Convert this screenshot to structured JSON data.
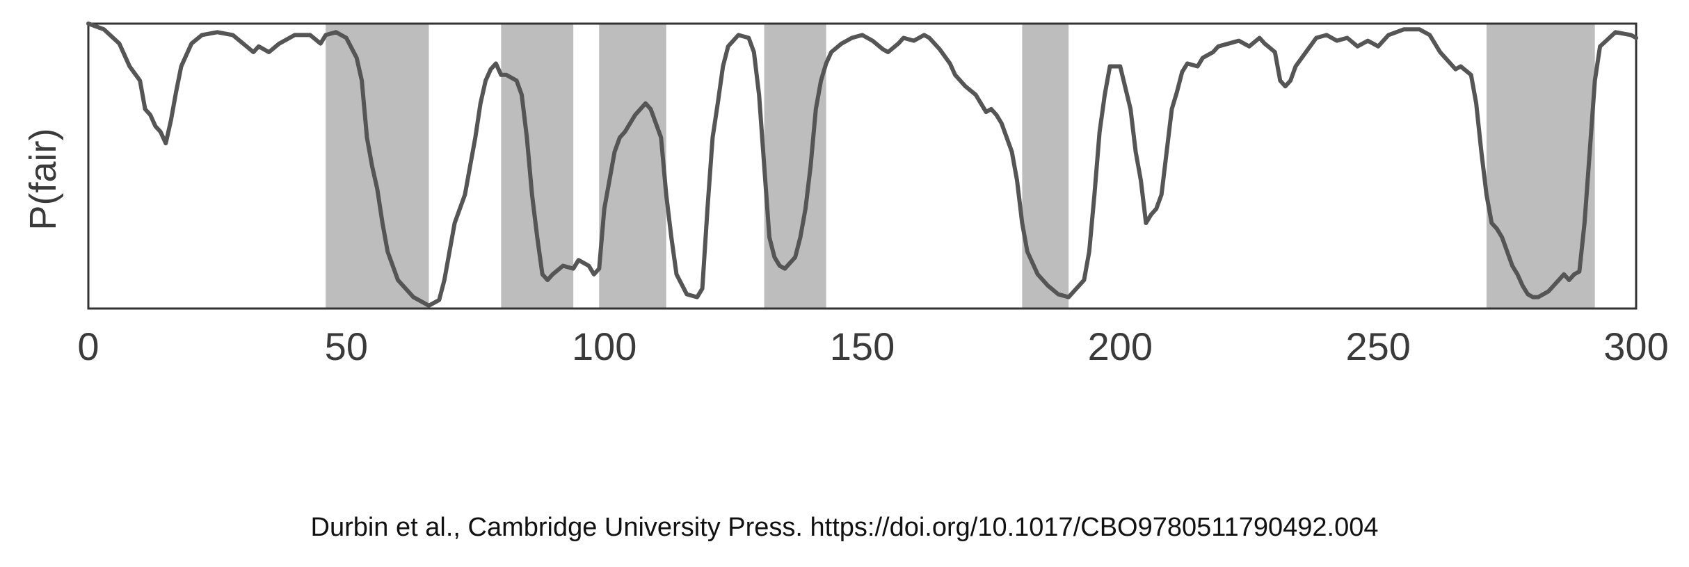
{
  "chart_data": {
    "type": "line",
    "title": "",
    "xlabel": "",
    "ylabel": "P(fair)",
    "xlim": [
      0,
      300
    ],
    "ylim": [
      0,
      1
    ],
    "xticks": [
      "0",
      "50",
      "100",
      "150",
      "200",
      "250",
      "300"
    ],
    "grid": false,
    "legend": "none",
    "colors": {
      "line": "#555555",
      "shade": "#bdbdbd",
      "frame": "#333333"
    },
    "shaded_regions": [
      [
        46,
        66
      ],
      [
        80,
        94
      ],
      [
        99,
        112
      ],
      [
        131,
        143
      ],
      [
        181,
        190
      ],
      [
        271,
        292
      ]
    ],
    "series": [
      {
        "values": [
          [
            0,
            1.0
          ],
          [
            3,
            0.98
          ],
          [
            6,
            0.93
          ],
          [
            8,
            0.85
          ],
          [
            10,
            0.8
          ],
          [
            11,
            0.7
          ],
          [
            12,
            0.68
          ],
          [
            13,
            0.64
          ],
          [
            14,
            0.62
          ],
          [
            15,
            0.58
          ],
          [
            16,
            0.66
          ],
          [
            17,
            0.76
          ],
          [
            18,
            0.85
          ],
          [
            20,
            0.93
          ],
          [
            22,
            0.96
          ],
          [
            25,
            0.97
          ],
          [
            28,
            0.96
          ],
          [
            30,
            0.93
          ],
          [
            32,
            0.9
          ],
          [
            33,
            0.92
          ],
          [
            35,
            0.9
          ],
          [
            37,
            0.93
          ],
          [
            40,
            0.96
          ],
          [
            43,
            0.96
          ],
          [
            45,
            0.93
          ],
          [
            46,
            0.96
          ],
          [
            48,
            0.97
          ],
          [
            50,
            0.95
          ],
          [
            52,
            0.88
          ],
          [
            53,
            0.8
          ],
          [
            54,
            0.6
          ],
          [
            55,
            0.5
          ],
          [
            56,
            0.42
          ],
          [
            57,
            0.3
          ],
          [
            58,
            0.2
          ],
          [
            60,
            0.1
          ],
          [
            62,
            0.06
          ],
          [
            63,
            0.04
          ],
          [
            65,
            0.02
          ],
          [
            66,
            0.01
          ],
          [
            68,
            0.03
          ],
          [
            69,
            0.1
          ],
          [
            70,
            0.2
          ],
          [
            71,
            0.3
          ],
          [
            72,
            0.35
          ],
          [
            73,
            0.4
          ],
          [
            74,
            0.5
          ],
          [
            75,
            0.6
          ],
          [
            76,
            0.72
          ],
          [
            77,
            0.8
          ],
          [
            78,
            0.84
          ],
          [
            79,
            0.86
          ],
          [
            80,
            0.82
          ],
          [
            81,
            0.82
          ],
          [
            83,
            0.8
          ],
          [
            84,
            0.75
          ],
          [
            85,
            0.6
          ],
          [
            86,
            0.4
          ],
          [
            87,
            0.25
          ],
          [
            88,
            0.12
          ],
          [
            89,
            0.1
          ],
          [
            90,
            0.12
          ],
          [
            92,
            0.15
          ],
          [
            94,
            0.14
          ],
          [
            95,
            0.17
          ],
          [
            97,
            0.15
          ],
          [
            98,
            0.12
          ],
          [
            99,
            0.14
          ],
          [
            100,
            0.35
          ],
          [
            102,
            0.55
          ],
          [
            103,
            0.6
          ],
          [
            104,
            0.62
          ],
          [
            106,
            0.68
          ],
          [
            107,
            0.7
          ],
          [
            108,
            0.72
          ],
          [
            109,
            0.7
          ],
          [
            111,
            0.6
          ],
          [
            112,
            0.4
          ],
          [
            113,
            0.25
          ],
          [
            114,
            0.12
          ],
          [
            116,
            0.05
          ],
          [
            118,
            0.04
          ],
          [
            119,
            0.07
          ],
          [
            120,
            0.35
          ],
          [
            121,
            0.6
          ],
          [
            122,
            0.72
          ],
          [
            123,
            0.85
          ],
          [
            124,
            0.92
          ],
          [
            126,
            0.96
          ],
          [
            128,
            0.95
          ],
          [
            129,
            0.9
          ],
          [
            130,
            0.75
          ],
          [
            131,
            0.5
          ],
          [
            132,
            0.25
          ],
          [
            133,
            0.18
          ],
          [
            134,
            0.15
          ],
          [
            135,
            0.14
          ],
          [
            136,
            0.16
          ],
          [
            137,
            0.18
          ],
          [
            138,
            0.25
          ],
          [
            139,
            0.35
          ],
          [
            140,
            0.5
          ],
          [
            141,
            0.7
          ],
          [
            142,
            0.8
          ],
          [
            143,
            0.86
          ],
          [
            144,
            0.9
          ],
          [
            146,
            0.93
          ],
          [
            148,
            0.95
          ],
          [
            150,
            0.96
          ],
          [
            152,
            0.94
          ],
          [
            154,
            0.91
          ],
          [
            155,
            0.9
          ],
          [
            157,
            0.93
          ],
          [
            158,
            0.95
          ],
          [
            160,
            0.94
          ],
          [
            162,
            0.96
          ],
          [
            163,
            0.95
          ],
          [
            165,
            0.91
          ],
          [
            167,
            0.86
          ],
          [
            168,
            0.82
          ],
          [
            170,
            0.78
          ],
          [
            172,
            0.75
          ],
          [
            173,
            0.72
          ],
          [
            174,
            0.69
          ],
          [
            175,
            0.7
          ],
          [
            176,
            0.68
          ],
          [
            177,
            0.65
          ],
          [
            178,
            0.6
          ],
          [
            179,
            0.55
          ],
          [
            180,
            0.45
          ],
          [
            181,
            0.3
          ],
          [
            182,
            0.2
          ],
          [
            184,
            0.12
          ],
          [
            186,
            0.08
          ],
          [
            188,
            0.05
          ],
          [
            190,
            0.04
          ],
          [
            191,
            0.06
          ],
          [
            192,
            0.08
          ],
          [
            193,
            0.1
          ],
          [
            194,
            0.2
          ],
          [
            195,
            0.4
          ],
          [
            196,
            0.62
          ],
          [
            197,
            0.75
          ],
          [
            198,
            0.85
          ],
          [
            200,
            0.85
          ],
          [
            202,
            0.7
          ],
          [
            203,
            0.55
          ],
          [
            204,
            0.45
          ],
          [
            205,
            0.3
          ],
          [
            206,
            0.33
          ],
          [
            207,
            0.35
          ],
          [
            208,
            0.4
          ],
          [
            209,
            0.55
          ],
          [
            210,
            0.7
          ],
          [
            211,
            0.76
          ],
          [
            212,
            0.83
          ],
          [
            213,
            0.86
          ],
          [
            215,
            0.85
          ],
          [
            216,
            0.88
          ],
          [
            218,
            0.9
          ],
          [
            219,
            0.92
          ],
          [
            221,
            0.93
          ],
          [
            223,
            0.94
          ],
          [
            225,
            0.92
          ],
          [
            227,
            0.95
          ],
          [
            228,
            0.93
          ],
          [
            230,
            0.9
          ],
          [
            231,
            0.8
          ],
          [
            232,
            0.78
          ],
          [
            233,
            0.8
          ],
          [
            234,
            0.85
          ],
          [
            236,
            0.9
          ],
          [
            238,
            0.95
          ],
          [
            240,
            0.96
          ],
          [
            242,
            0.94
          ],
          [
            244,
            0.95
          ],
          [
            246,
            0.92
          ],
          [
            248,
            0.94
          ],
          [
            250,
            0.92
          ],
          [
            252,
            0.96
          ],
          [
            255,
            0.98
          ],
          [
            258,
            0.98
          ],
          [
            260,
            0.96
          ],
          [
            262,
            0.9
          ],
          [
            265,
            0.84
          ],
          [
            266,
            0.85
          ],
          [
            268,
            0.82
          ],
          [
            269,
            0.72
          ],
          [
            270,
            0.55
          ],
          [
            271,
            0.4
          ],
          [
            272,
            0.3
          ],
          [
            273,
            0.28
          ],
          [
            274,
            0.25
          ],
          [
            275,
            0.2
          ],
          [
            276,
            0.15
          ],
          [
            277,
            0.12
          ],
          [
            278,
            0.08
          ],
          [
            279,
            0.05
          ],
          [
            280,
            0.04
          ],
          [
            281,
            0.04
          ],
          [
            283,
            0.06
          ],
          [
            285,
            0.1
          ],
          [
            286,
            0.12
          ],
          [
            287,
            0.1
          ],
          [
            288,
            0.12
          ],
          [
            289,
            0.13
          ],
          [
            290,
            0.3
          ],
          [
            291,
            0.55
          ],
          [
            292,
            0.8
          ],
          [
            293,
            0.92
          ],
          [
            296,
            0.97
          ],
          [
            299,
            0.96
          ],
          [
            300,
            0.95
          ]
        ]
      }
    ]
  },
  "caption": "Durbin et al., Cambridge University Press. https://doi.org/10.1017/CBO9780511790492.004"
}
